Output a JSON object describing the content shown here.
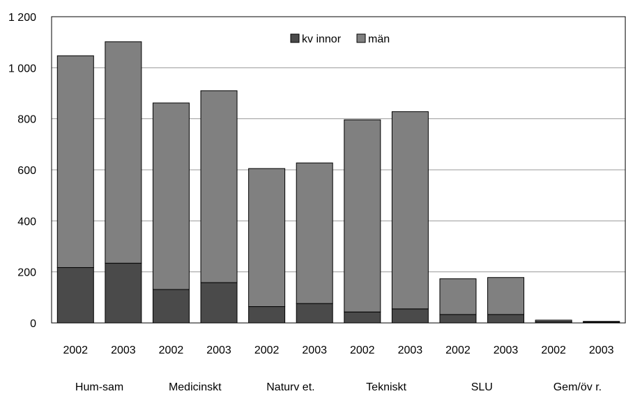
{
  "chart_data": {
    "type": "bar",
    "stacked": true,
    "title": "",
    "xlabel": "",
    "ylabel": "",
    "ylim": [
      0,
      1200
    ],
    "yticks": [
      "0",
      "200",
      "400",
      "600",
      "800",
      "1 000",
      "1 200"
    ],
    "grid": true,
    "legend_position": "top-center",
    "x": [
      "2002",
      "2003",
      "2002",
      "2003",
      "2002",
      "2003",
      "2002",
      "2003",
      "2002",
      "2003",
      "2002",
      "2003"
    ],
    "groups": [
      "Hum-sam",
      "Medicinskt",
      "Naturv et.",
      "Tekniskt",
      "SLU",
      "Gem/öv r."
    ],
    "series": [
      {
        "name": "kv innor",
        "color": "#4a4a4a",
        "values": [
          217,
          234,
          131,
          158,
          64,
          76,
          43,
          55,
          33,
          33,
          5,
          3
        ]
      },
      {
        "name": "män",
        "color": "#808080",
        "values": [
          830,
          868,
          731,
          752,
          541,
          551,
          753,
          773,
          140,
          145,
          6,
          3
        ]
      }
    ]
  }
}
